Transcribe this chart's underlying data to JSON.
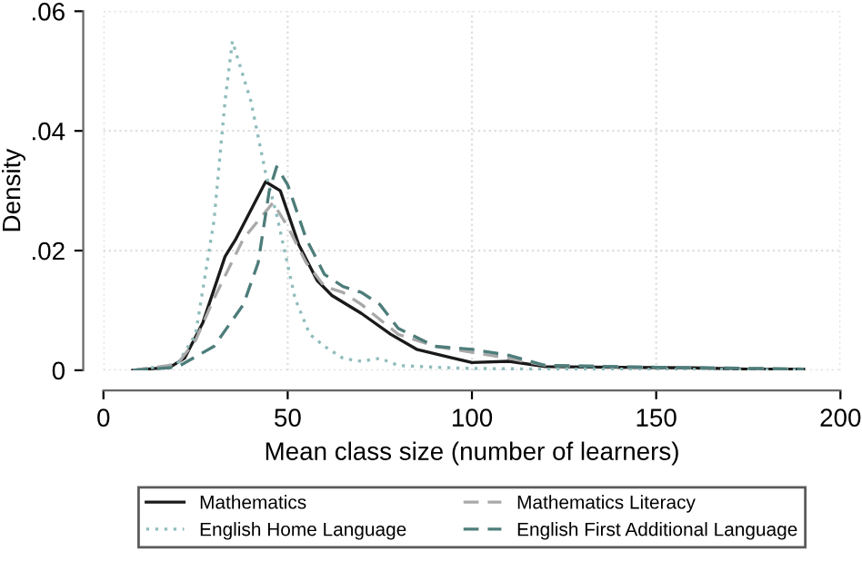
{
  "chart_data": {
    "type": "line",
    "xlabel": "Mean class size (number of learners)",
    "ylabel": "Density",
    "xlim": [
      0,
      200
    ],
    "xticks": [
      0,
      50,
      100,
      150,
      200
    ],
    "ylim": [
      0,
      0.06
    ],
    "yticks": [
      {
        "value": 0,
        "label": "0"
      },
      {
        "value": 0.02,
        "label": ".02"
      },
      {
        "value": 0.04,
        "label": ".04"
      },
      {
        "value": 0.06,
        "label": ".06"
      }
    ],
    "grid": true,
    "legend": "bottom",
    "series": [
      {
        "name": "Mathematics",
        "color": "#1a1a1a",
        "line_style": "solid",
        "x": [
          8,
          18,
          22,
          27,
          33,
          36,
          44,
          48,
          53,
          58,
          62,
          70,
          78,
          85,
          95,
          100,
          110,
          120,
          140,
          160,
          175,
          190
        ],
        "values": [
          0,
          0.0005,
          0.002,
          0.008,
          0.019,
          0.022,
          0.0315,
          0.03,
          0.021,
          0.015,
          0.0125,
          0.0095,
          0.006,
          0.0035,
          0.002,
          0.0013,
          0.0015,
          0.0006,
          0.0005,
          0.0004,
          0.0002,
          0.0002
        ]
      },
      {
        "name": "Mathematics Literacy",
        "color": "#a9a9a9",
        "line_style": "dashed",
        "x": [
          8,
          20,
          25,
          30,
          38,
          46,
          50,
          55,
          60,
          65,
          70,
          80,
          90,
          100,
          110,
          120,
          150,
          190
        ],
        "values": [
          0,
          0.001,
          0.005,
          0.012,
          0.022,
          0.028,
          0.024,
          0.018,
          0.014,
          0.013,
          0.011,
          0.006,
          0.004,
          0.003,
          0.002,
          0.0008,
          0.0005,
          0.0002
        ]
      },
      {
        "name": "English Home Language",
        "color": "#8fbcbc",
        "line_style": "dotted",
        "x": [
          8,
          20,
          25,
          30,
          33,
          35,
          40,
          44,
          47,
          52,
          56,
          60,
          65,
          70,
          75,
          80,
          90,
          100,
          120,
          190
        ],
        "values": [
          0,
          0.001,
          0.006,
          0.025,
          0.045,
          0.055,
          0.045,
          0.033,
          0.026,
          0.012,
          0.006,
          0.004,
          0.002,
          0.0015,
          0.002,
          0.0008,
          0.0005,
          0.0003,
          0.0002,
          0.0001
        ]
      },
      {
        "name": "English First Additional Language",
        "color": "#4d7d7a",
        "line_style": "dashed",
        "x": [
          8,
          20,
          30,
          38,
          42,
          45,
          47,
          50,
          55,
          60,
          65,
          70,
          75,
          80,
          90,
          100,
          110,
          120,
          150,
          190
        ],
        "values": [
          0,
          0.0005,
          0.004,
          0.011,
          0.018,
          0.03,
          0.034,
          0.031,
          0.022,
          0.016,
          0.014,
          0.013,
          0.011,
          0.007,
          0.004,
          0.0035,
          0.0025,
          0.0008,
          0.0005,
          0.0002
        ]
      }
    ]
  }
}
